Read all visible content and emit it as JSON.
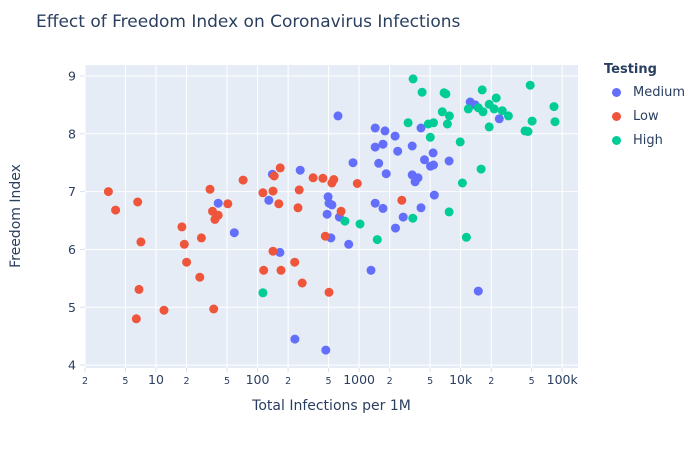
{
  "title": "Effect of Freedom Index on Coronavirus Infections",
  "colors": {
    "text": "#2a3f5f",
    "plot_background": "#e5ecf6",
    "gridline": "#ffffff",
    "tick_mark": "#d8e0ef",
    "medium": "#636efa",
    "low": "#ef553b",
    "high": "#00cc96"
  },
  "chart_data": {
    "type": "scatter",
    "title": "Effect of Freedom Index on Coronavirus Infections",
    "xlabel": "Total Infections per 1M",
    "ylabel": "Freedom Index",
    "x_scale": "log",
    "x_range": [
      2,
      143000
    ],
    "y_range": [
      3.95,
      9.19
    ],
    "grid": true,
    "marker_size_px": 9,
    "x_ticks": [
      {
        "v": 2,
        "label": "2",
        "minor": true
      },
      {
        "v": 5,
        "label": "5",
        "minor": true
      },
      {
        "v": 10,
        "label": "10",
        "minor": false
      },
      {
        "v": 20,
        "label": "2",
        "minor": true
      },
      {
        "v": 50,
        "label": "5",
        "minor": true
      },
      {
        "v": 100,
        "label": "100",
        "minor": false
      },
      {
        "v": 200,
        "label": "2",
        "minor": true
      },
      {
        "v": 500,
        "label": "5",
        "minor": true
      },
      {
        "v": 1000,
        "label": "1000",
        "minor": false
      },
      {
        "v": 2000,
        "label": "2",
        "minor": true
      },
      {
        "v": 5000,
        "label": "5",
        "minor": true
      },
      {
        "v": 10000,
        "label": "10k",
        "minor": false
      },
      {
        "v": 20000,
        "label": "2",
        "minor": true
      },
      {
        "v": 50000,
        "label": "5",
        "minor": true
      },
      {
        "v": 100000,
        "label": "100k",
        "minor": false
      }
    ],
    "y_ticks": [
      {
        "v": 4,
        "label": "4"
      },
      {
        "v": 5,
        "label": "5"
      },
      {
        "v": 6,
        "label": "6"
      },
      {
        "v": 7,
        "label": "7"
      },
      {
        "v": 8,
        "label": "8"
      },
      {
        "v": 9,
        "label": "9"
      }
    ],
    "legend": {
      "title": "Testing",
      "position": "right"
    },
    "series": [
      {
        "name": "Medium",
        "color": "#636efa",
        "points": [
          [
            620,
            8.31
          ],
          [
            1440,
            8.1
          ],
          [
            1800,
            8.05
          ],
          [
            2260,
            7.96
          ],
          [
            1720,
            7.82
          ],
          [
            1440,
            7.77
          ],
          [
            2400,
            7.7
          ],
          [
            3330,
            7.79
          ],
          [
            870,
            7.5
          ],
          [
            1560,
            7.49
          ],
          [
            12400,
            8.55
          ],
          [
            13900,
            8.5
          ],
          [
            24000,
            8.26
          ],
          [
            4070,
            8.1
          ],
          [
            5350,
            7.67
          ],
          [
            4400,
            7.55
          ],
          [
            7700,
            7.53
          ],
          [
            5050,
            7.44
          ],
          [
            5400,
            7.46
          ],
          [
            3330,
            7.29
          ],
          [
            3800,
            7.24
          ],
          [
            3560,
            7.17
          ],
          [
            5500,
            6.94
          ],
          [
            4070,
            6.72
          ],
          [
            41,
            6.8
          ],
          [
            59,
            6.29
          ],
          [
            263,
            7.37
          ],
          [
            140,
            7.3
          ],
          [
            1850,
            7.31
          ],
          [
            129,
            6.85
          ],
          [
            495,
            6.91
          ],
          [
            505,
            6.8
          ],
          [
            540,
            6.77
          ],
          [
            484,
            6.61
          ],
          [
            640,
            6.56
          ],
          [
            1440,
            6.8
          ],
          [
            1720,
            6.71
          ],
          [
            2720,
            6.56
          ],
          [
            2280,
            6.37
          ],
          [
            528,
            6.2
          ],
          [
            790,
            6.09
          ],
          [
            166,
            5.95
          ],
          [
            1310,
            5.64
          ],
          [
            233,
            4.45
          ],
          [
            470,
            4.26
          ],
          [
            14900,
            5.28
          ]
        ]
      },
      {
        "name": "Low",
        "color": "#ef553b",
        "points": [
          [
            3.4,
            7.0
          ],
          [
            4.0,
            6.68
          ],
          [
            6.6,
            6.82
          ],
          [
            7.1,
            6.13
          ],
          [
            18,
            6.39
          ],
          [
            19,
            6.09
          ],
          [
            20,
            5.78
          ],
          [
            28,
            6.2
          ],
          [
            34,
            7.04
          ],
          [
            36,
            6.66
          ],
          [
            41,
            6.59
          ],
          [
            38,
            6.52
          ],
          [
            51,
            6.79
          ],
          [
            72,
            7.2
          ],
          [
            6.8,
            5.31
          ],
          [
            27,
            5.52
          ],
          [
            6.4,
            4.8
          ],
          [
            12,
            4.95
          ],
          [
            37,
            4.97
          ],
          [
            167,
            7.41
          ],
          [
            146,
            7.27
          ],
          [
            257,
            7.03
          ],
          [
            352,
            7.24
          ],
          [
            440,
            7.23
          ],
          [
            563,
            7.21
          ],
          [
            540,
            7.15
          ],
          [
            960,
            7.14
          ],
          [
            113,
            6.98
          ],
          [
            142,
            7.01
          ],
          [
            162,
            6.79
          ],
          [
            250,
            6.72
          ],
          [
            2630,
            6.85
          ],
          [
            665,
            6.66
          ],
          [
            465,
            6.23
          ],
          [
            142,
            5.97
          ],
          [
            115,
            5.64
          ],
          [
            170,
            5.64
          ],
          [
            232,
            5.78
          ],
          [
            275,
            5.42
          ],
          [
            505,
            5.26
          ]
        ]
      },
      {
        "name": "High",
        "color": "#00cc96",
        "points": [
          [
            3400,
            8.95
          ],
          [
            4170,
            8.72
          ],
          [
            6870,
            8.71
          ],
          [
            7150,
            8.69
          ],
          [
            16300,
            8.76
          ],
          [
            48400,
            8.84
          ],
          [
            22400,
            8.62
          ],
          [
            19100,
            8.51
          ],
          [
            11900,
            8.43
          ],
          [
            14900,
            8.45
          ],
          [
            16600,
            8.38
          ],
          [
            21400,
            8.43
          ],
          [
            25700,
            8.4
          ],
          [
            29500,
            8.31
          ],
          [
            6600,
            8.38
          ],
          [
            7750,
            8.31
          ],
          [
            7400,
            8.17
          ],
          [
            5400,
            8.19
          ],
          [
            4800,
            8.17
          ],
          [
            3040,
            8.19
          ],
          [
            19100,
            8.12
          ],
          [
            50500,
            8.22
          ],
          [
            83000,
            8.47
          ],
          [
            84800,
            8.21
          ],
          [
            43000,
            8.05
          ],
          [
            46000,
            8.04
          ],
          [
            5020,
            7.94
          ],
          [
            9900,
            7.86
          ],
          [
            15900,
            7.39
          ],
          [
            10400,
            7.15
          ],
          [
            7700,
            6.65
          ],
          [
            3380,
            6.54
          ],
          [
            11400,
            6.21
          ],
          [
            725,
            6.49
          ],
          [
            1020,
            6.44
          ],
          [
            1510,
            6.17
          ],
          [
            113,
            5.25
          ]
        ]
      }
    ]
  }
}
